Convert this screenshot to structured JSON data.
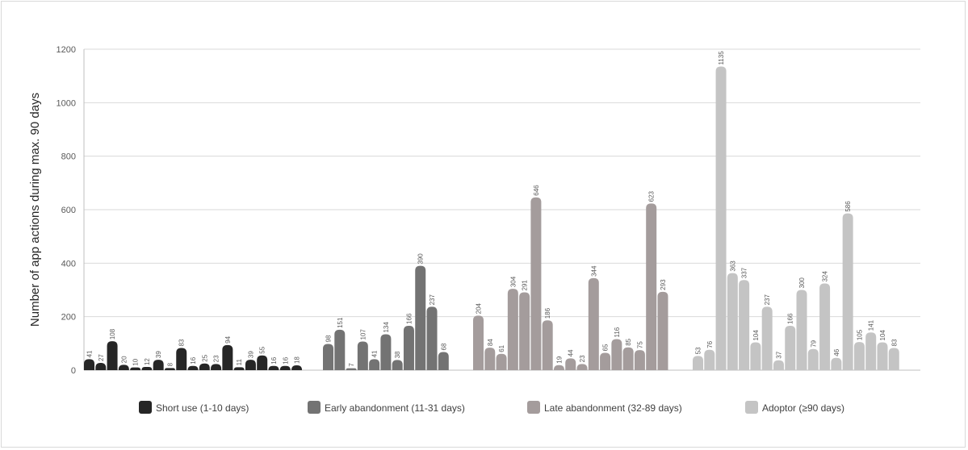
{
  "chart_data": {
    "type": "bar",
    "title": "",
    "xlabel": "",
    "ylabel": "Number of app actions during max. 90 days",
    "ylim": [
      0,
      1200
    ],
    "yticks": [
      0,
      200,
      400,
      600,
      800,
      1000,
      1200
    ],
    "grid": true,
    "legend_position": "bottom",
    "series": [
      {
        "name": "Short use (1-10 days)",
        "color": "#262626",
        "values": [
          41,
          27,
          108,
          20,
          10,
          12,
          39,
          8,
          83,
          16,
          25,
          23,
          94,
          11,
          39,
          55,
          16,
          16,
          18
        ]
      },
      {
        "name": "Early abandonment (11-31 days)",
        "color": "#737373",
        "values": [
          98,
          151,
          7,
          107,
          41,
          134,
          38,
          166,
          390,
          237,
          68
        ]
      },
      {
        "name": "Late abandonment (32-89 days)",
        "color": "#a49c9c",
        "values": [
          204,
          84,
          61,
          304,
          291,
          646,
          186,
          19,
          44,
          23,
          344,
          65,
          116,
          85,
          75,
          623,
          293
        ]
      },
      {
        "name": "Adoptor (≥90 days)",
        "color": "#c4c4c4",
        "values": [
          53,
          76,
          1135,
          363,
          337,
          104,
          237,
          37,
          166,
          300,
          79,
          324,
          46,
          586,
          105,
          141,
          104,
          83
        ]
      }
    ]
  }
}
